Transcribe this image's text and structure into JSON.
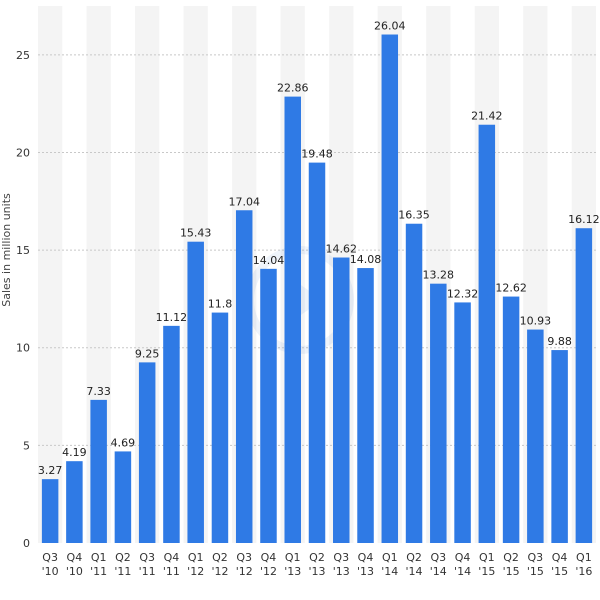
{
  "chart_data": {
    "type": "bar",
    "categories": [
      [
        "Q3",
        "'10"
      ],
      [
        "Q4",
        "'10"
      ],
      [
        "Q1",
        "'11"
      ],
      [
        "Q2",
        "'11"
      ],
      [
        "Q3",
        "'11"
      ],
      [
        "Q4",
        "'11"
      ],
      [
        "Q1",
        "'12"
      ],
      [
        "Q2",
        "'12"
      ],
      [
        "Q3",
        "'12"
      ],
      [
        "Q4",
        "'12"
      ],
      [
        "Q1",
        "'13"
      ],
      [
        "Q2",
        "'13"
      ],
      [
        "Q3",
        "'13"
      ],
      [
        "Q4",
        "'13"
      ],
      [
        "Q1",
        "'14"
      ],
      [
        "Q2",
        "'14"
      ],
      [
        "Q3",
        "'14"
      ],
      [
        "Q4",
        "'14"
      ],
      [
        "Q1",
        "'15"
      ],
      [
        "Q2",
        "'15"
      ],
      [
        "Q3",
        "'15"
      ],
      [
        "Q4",
        "'15"
      ],
      [
        "Q1",
        "'16"
      ]
    ],
    "values": [
      3.27,
      4.19,
      7.33,
      4.69,
      9.25,
      11.12,
      15.43,
      11.8,
      17.04,
      14.04,
      22.86,
      19.48,
      14.62,
      14.08,
      26.04,
      16.35,
      13.28,
      12.32,
      21.42,
      12.62,
      10.93,
      9.88,
      16.12
    ],
    "value_labels": [
      "3.27",
      "4.19",
      "7.33",
      "4.69",
      "9.25",
      "11.12",
      "15.43",
      "11.8",
      "17.04",
      "14.04",
      "22.86",
      "19.48",
      "14.62",
      "14.08",
      "26.04",
      "16.35",
      "13.28",
      "12.32",
      "21.42",
      "12.62",
      "10.93",
      "9.88",
      "16.12"
    ],
    "ylabel": "Sales in million units",
    "ylim": [
      0,
      27.5
    ],
    "yticks": [
      0,
      5,
      10,
      15,
      20,
      25
    ],
    "grid": true,
    "colors": {
      "bar": "#2f7ae5",
      "band": "#f4f4f4",
      "grid": "#c8c8c8"
    }
  }
}
